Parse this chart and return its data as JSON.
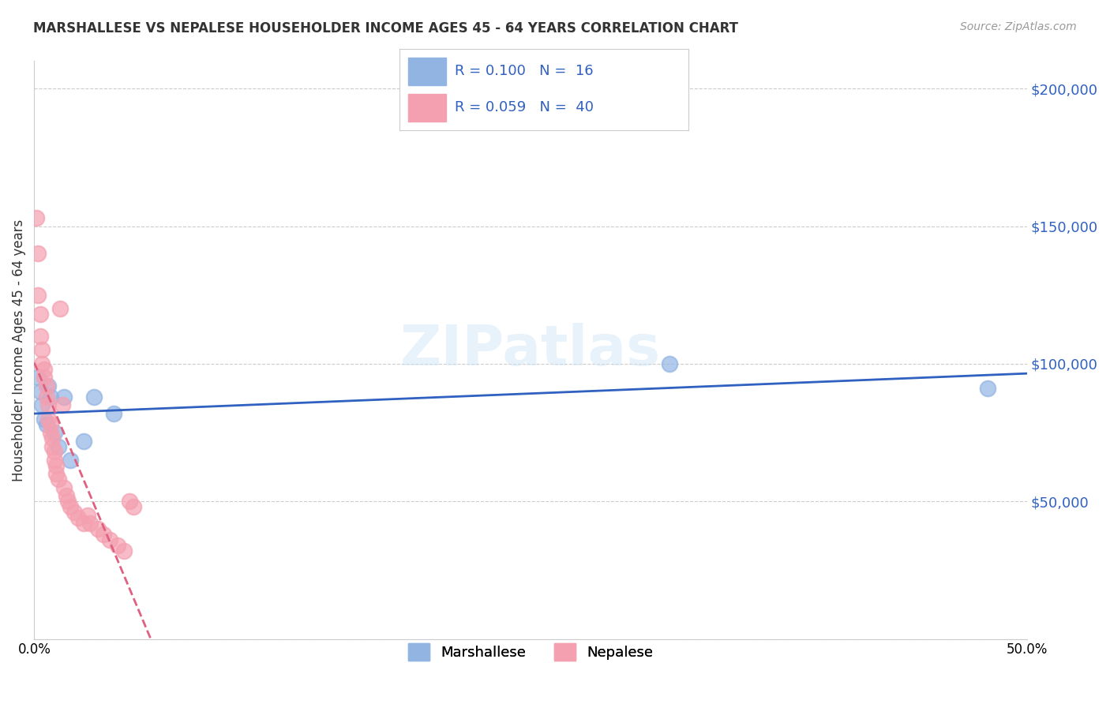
{
  "title": "MARSHALLESE VS NEPALESE HOUSEHOLDER INCOME AGES 45 - 64 YEARS CORRELATION CHART",
  "source": "Source: ZipAtlas.com",
  "ylabel": "Householder Income Ages 45 - 64 years",
  "xmin": 0.0,
  "xmax": 0.5,
  "ymin": 0,
  "ymax": 210000,
  "yticks": [
    0,
    50000,
    100000,
    150000,
    200000
  ],
  "ytick_labels": [
    "",
    "$50,000",
    "$100,000",
    "$150,000",
    "$200,000"
  ],
  "xticks": [
    0.0,
    0.1,
    0.2,
    0.3,
    0.4,
    0.5
  ],
  "xtick_labels": [
    "0.0%",
    "",
    "",
    "",
    "",
    "50.0%"
  ],
  "marshallese_color": "#92b4e3",
  "nepalese_color": "#f4a0b0",
  "marshallese_line_color": "#3060c0",
  "nepalese_line_color": "#e06080",
  "background_color": "#ffffff",
  "watermark": "ZIPatlas",
  "marshallese_x": [
    0.002,
    0.003,
    0.004,
    0.005,
    0.006,
    0.007,
    0.008,
    0.01,
    0.012,
    0.015,
    0.018,
    0.025,
    0.03,
    0.04,
    0.32,
    0.48
  ],
  "marshallese_y": [
    95000,
    90000,
    85000,
    80000,
    78000,
    92000,
    88000,
    75000,
    70000,
    88000,
    65000,
    72000,
    88000,
    82000,
    100000,
    91000
  ],
  "nepalese_x": [
    0.001,
    0.002,
    0.002,
    0.003,
    0.003,
    0.004,
    0.004,
    0.005,
    0.005,
    0.006,
    0.006,
    0.007,
    0.007,
    0.008,
    0.008,
    0.009,
    0.009,
    0.01,
    0.01,
    0.011,
    0.011,
    0.012,
    0.013,
    0.014,
    0.015,
    0.016,
    0.017,
    0.018,
    0.02,
    0.022,
    0.025,
    0.027,
    0.028,
    0.032,
    0.035,
    0.038,
    0.042,
    0.045,
    0.048,
    0.05
  ],
  "nepalese_y": [
    153000,
    140000,
    125000,
    118000,
    110000,
    105000,
    100000,
    98000,
    95000,
    92000,
    88000,
    85000,
    80000,
    78000,
    75000,
    73000,
    70000,
    68000,
    65000,
    63000,
    60000,
    58000,
    120000,
    85000,
    55000,
    52000,
    50000,
    48000,
    46000,
    44000,
    42000,
    45000,
    42000,
    40000,
    38000,
    36000,
    34000,
    32000,
    50000,
    48000
  ]
}
